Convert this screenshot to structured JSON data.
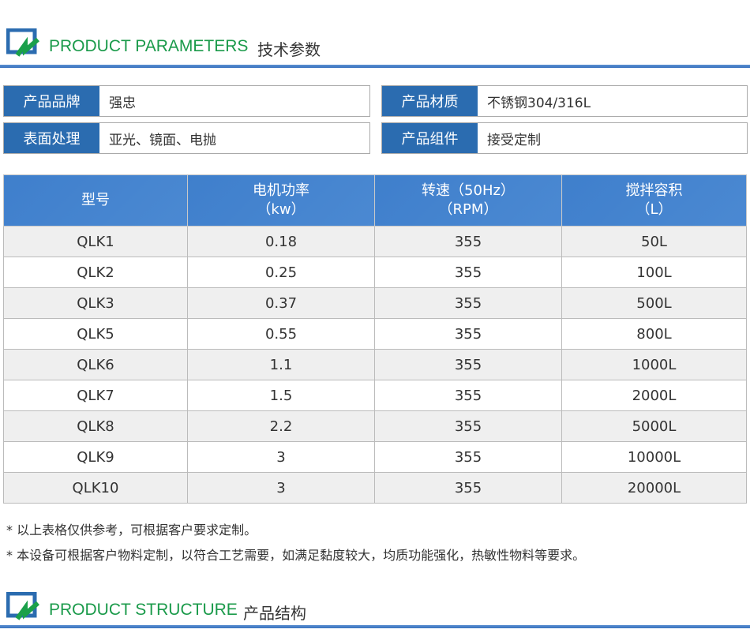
{
  "section1": {
    "title_en": "PRODUCT PARAMETERS",
    "title_cn": "技术参数"
  },
  "props": [
    {
      "label": "产品品牌",
      "value": "强忠"
    },
    {
      "label": "产品材质",
      "value": "不锈钢304/316L"
    },
    {
      "label": "表面处理",
      "value": "亚光、镜面、电抛"
    },
    {
      "label": "产品组件",
      "value": "接受定制"
    }
  ],
  "table": {
    "headers": [
      [
        "型号",
        ""
      ],
      [
        "电机功率",
        "（kw）"
      ],
      [
        "转速（50Hz）",
        "（RPM）"
      ],
      [
        "搅拌容积",
        "（L）"
      ]
    ],
    "rows": [
      [
        "QLK1",
        "0.18",
        "355",
        "50L"
      ],
      [
        "QLK2",
        "0.25",
        "355",
        "100L"
      ],
      [
        "QLK3",
        "0.37",
        "355",
        "500L"
      ],
      [
        "QLK5",
        "0.55",
        "355",
        "800L"
      ],
      [
        "QLK6",
        "1.1",
        "355",
        "1000L"
      ],
      [
        "QLK7",
        "1.5",
        "355",
        "2000L"
      ],
      [
        "QLK8",
        "2.2",
        "355",
        "5000L"
      ],
      [
        "QLK9",
        "3",
        "355",
        "10000L"
      ],
      [
        "QLK10",
        "3",
        "355",
        "20000L"
      ]
    ]
  },
  "notes": [
    "* 以上表格仅供参考，可根据客户要求定制。",
    "* 本设备可根据客户物料定制，以符合工艺需要，如满足黏度较大，均质功能强化，热敏性物料等要求。"
  ],
  "section2": {
    "title_en": "PRODUCT STRUCTURE",
    "title_cn": "产品结构"
  },
  "colors": {
    "accent_blue": "#2b6cb0",
    "title_green": "#1a9a4a"
  }
}
